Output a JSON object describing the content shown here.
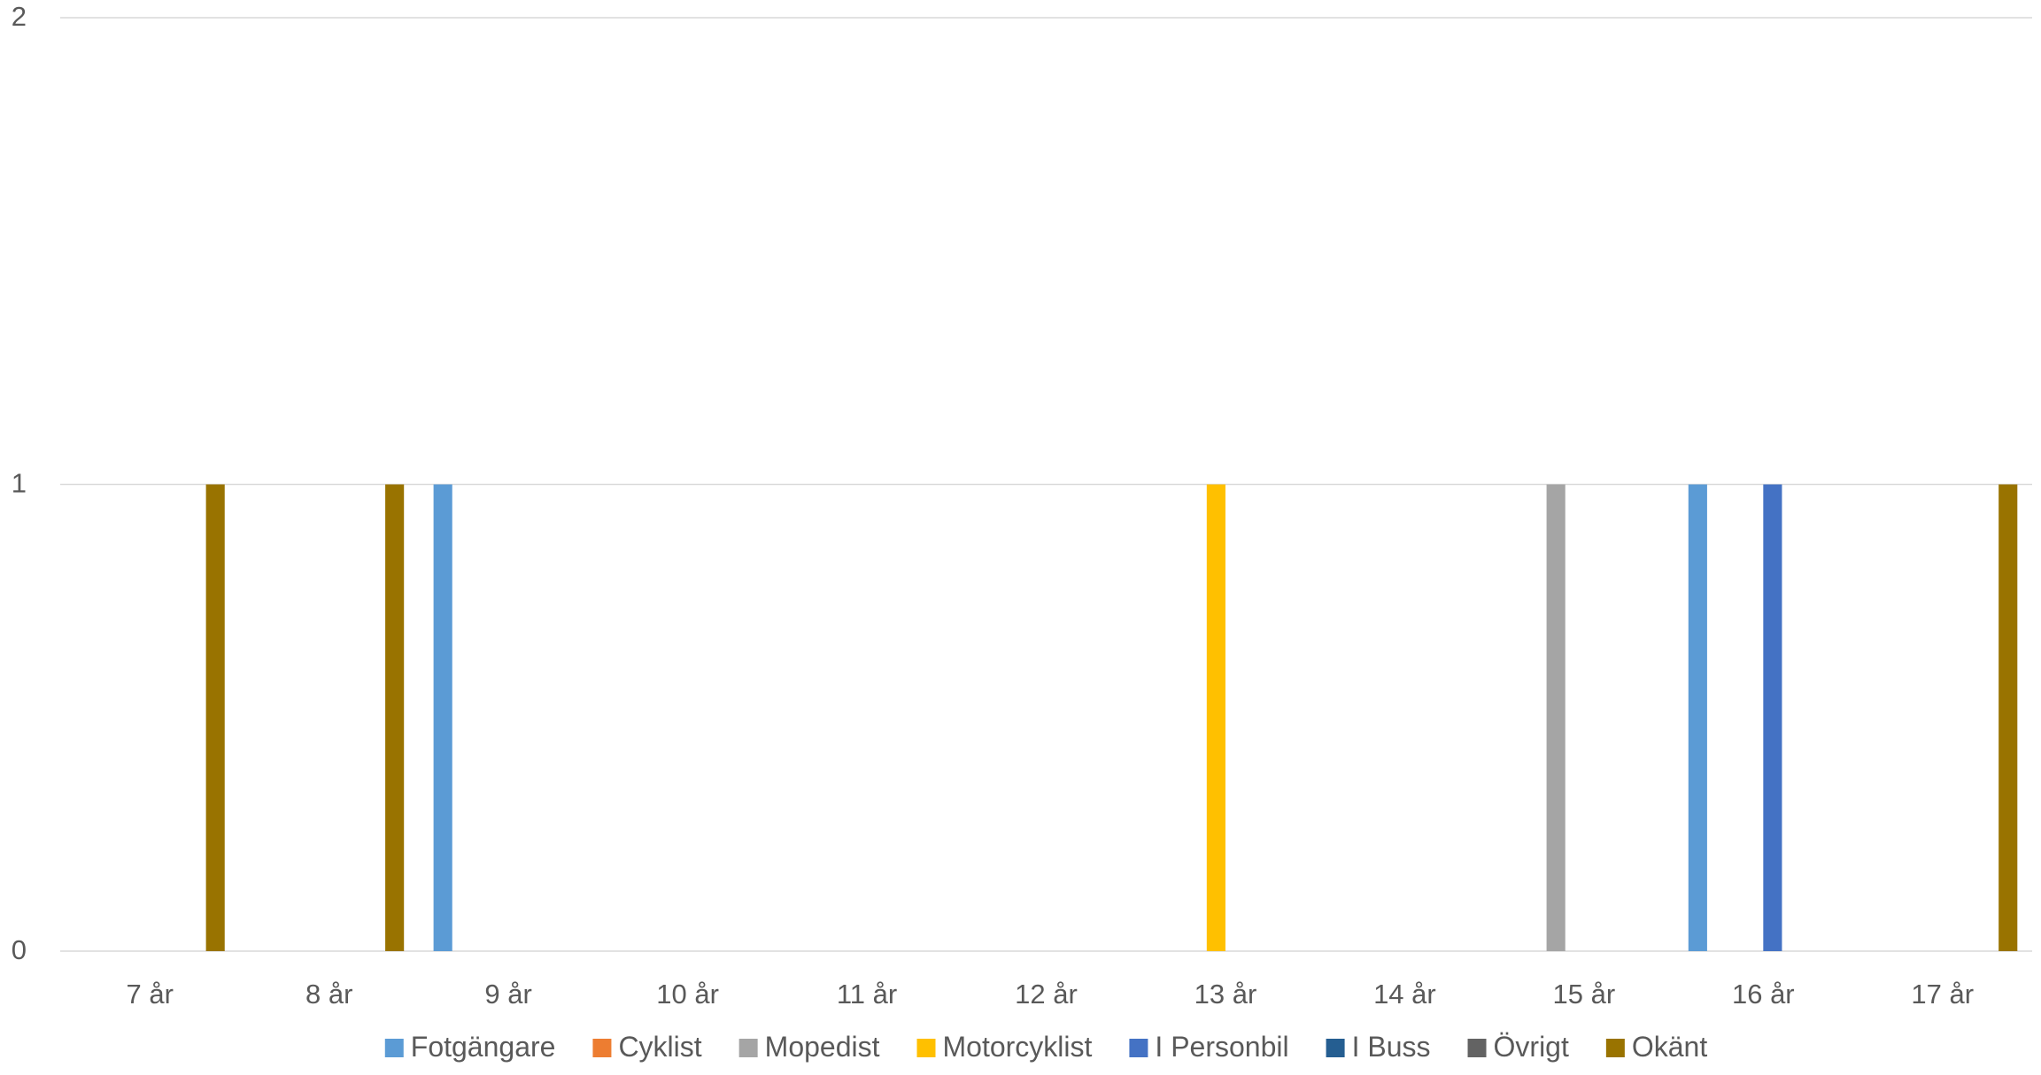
{
  "chart_data": {
    "type": "bar",
    "title": "",
    "xlabel": "",
    "ylabel": "",
    "ylim": [
      0,
      2
    ],
    "yticks": [
      0,
      1,
      2
    ],
    "grid": true,
    "legend_position": "bottom",
    "categories": [
      "7 år",
      "8 år",
      "9 år",
      "10 år",
      "11 år",
      "12 år",
      "13 år",
      "14 år",
      "15 år",
      "16 år",
      "17 år"
    ],
    "series": [
      {
        "name": "Fotgängare",
        "color": "#5B9BD5",
        "values": [
          0,
          0,
          1,
          0,
          0,
          0,
          0,
          0,
          0,
          1,
          0
        ]
      },
      {
        "name": "Cyklist",
        "color": "#ED7D31",
        "values": [
          0,
          0,
          0,
          0,
          0,
          0,
          0,
          0,
          0,
          0,
          0
        ]
      },
      {
        "name": "Mopedist",
        "color": "#A5A5A5",
        "values": [
          0,
          0,
          0,
          0,
          0,
          0,
          0,
          0,
          1,
          0,
          0
        ]
      },
      {
        "name": "Motorcyklist",
        "color": "#FFC000",
        "values": [
          0,
          0,
          0,
          0,
          0,
          0,
          1,
          0,
          0,
          0,
          0
        ]
      },
      {
        "name": "I Personbil",
        "color": "#4472C4",
        "values": [
          0,
          0,
          0,
          0,
          0,
          0,
          0,
          0,
          0,
          1,
          0
        ]
      },
      {
        "name": "I Buss",
        "color": "#255E91",
        "values": [
          0,
          0,
          0,
          0,
          0,
          0,
          0,
          0,
          0,
          0,
          0
        ]
      },
      {
        "name": "Övrigt",
        "color": "#636363",
        "values": [
          0,
          0,
          0,
          0,
          0,
          0,
          0,
          0,
          0,
          0,
          0
        ]
      },
      {
        "name": "Okänt",
        "color": "#997300",
        "values": [
          1,
          1,
          0,
          0,
          0,
          0,
          0,
          0,
          0,
          0,
          1
        ]
      }
    ]
  }
}
